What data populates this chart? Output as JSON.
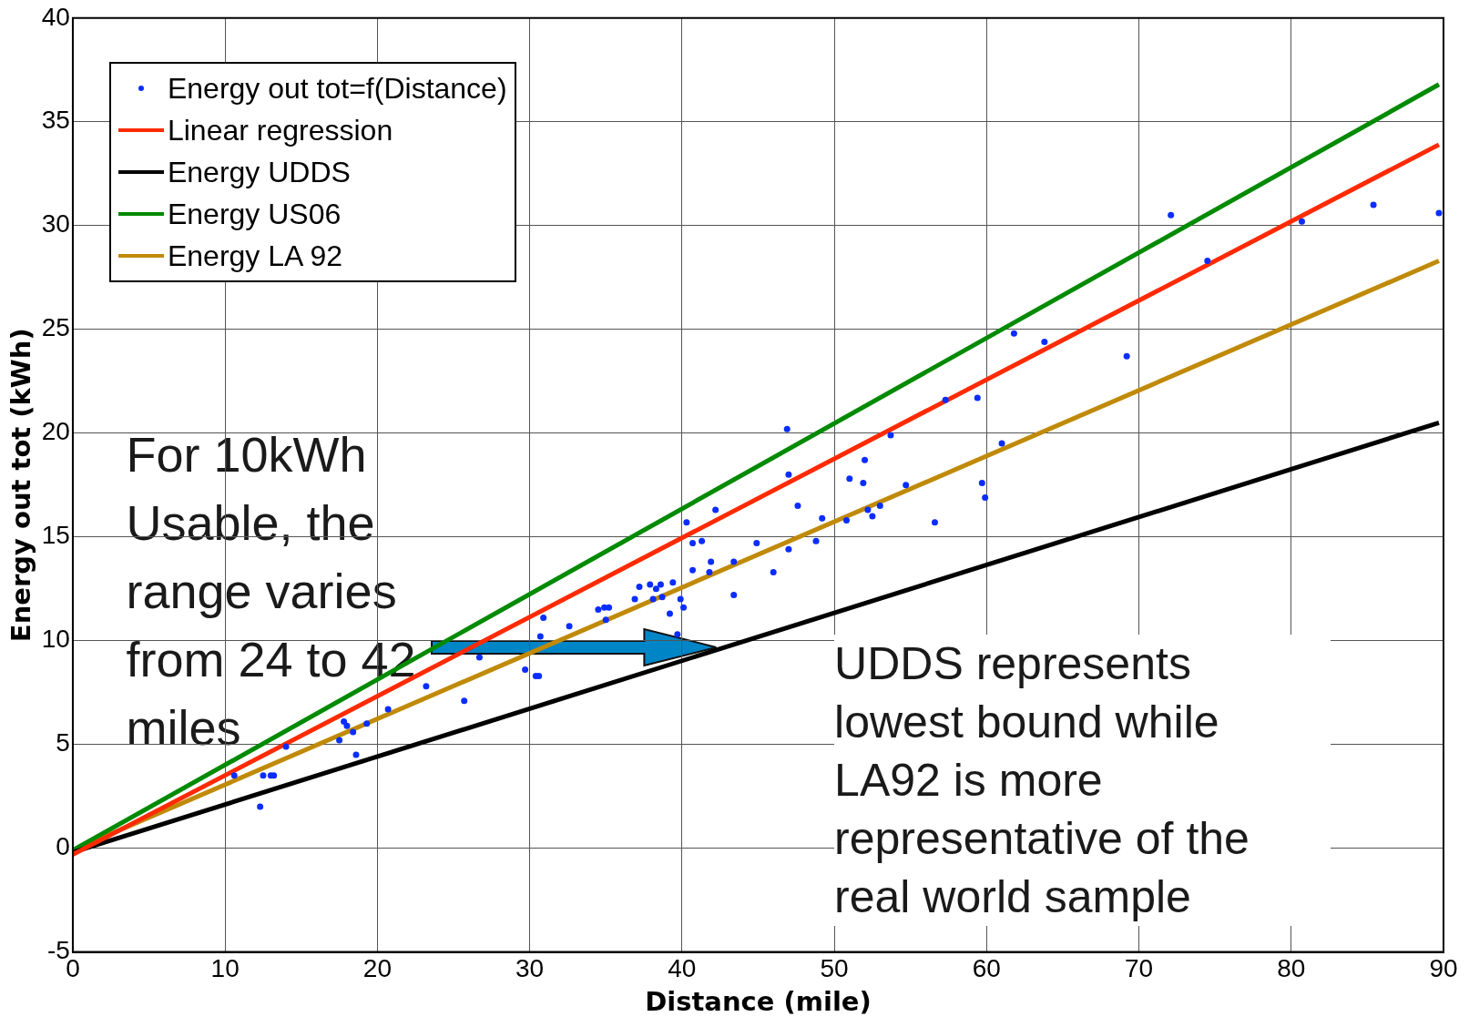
{
  "chart_data": {
    "type": "scatter",
    "xlabel": "Distance (mile)",
    "ylabel": "Energy out tot (kWh)",
    "xlim": [
      0,
      90
    ],
    "ylim": [
      -5,
      40
    ],
    "xticks": [
      0,
      10,
      20,
      30,
      40,
      50,
      60,
      70,
      80,
      90
    ],
    "yticks": [
      -5,
      0,
      5,
      10,
      15,
      20,
      25,
      30,
      35,
      40
    ],
    "grid": true,
    "legend": "top left",
    "annotations": [
      "For 10kWh Usable, the range varies from 24 to 42 miles",
      "UDDS represents lowest bound while LA92 is more representative of the real world sample"
    ],
    "series": [
      {
        "name": "Energy out tot=f(Distance)",
        "marker": "circle",
        "color": "#0a2dff",
        "x": [
          12.3,
          10.6,
          12.5,
          13.0,
          13.2,
          14.0,
          17.5,
          17.8,
          18.0,
          18.4,
          18.6,
          19.3,
          20.7,
          23.2,
          25.7,
          26.7,
          29.7,
          30.4,
          30.6,
          30.7,
          30.9,
          32.6,
          34.5,
          34.9,
          35.2,
          35.0,
          36.9,
          37.2,
          37.9,
          38.3,
          38.6,
          38.1,
          38.7,
          39.2,
          39.9,
          39.4,
          39.7,
          40.1,
          40.3,
          40.7,
          40.7,
          41.3,
          41.8,
          41.9,
          42.2,
          43.4,
          43.4,
          44.9,
          46.0,
          46.9,
          47.0,
          47.0,
          47.6,
          48.8,
          49.2,
          50.8,
          51.0,
          52.0,
          51.9,
          52.2,
          52.5,
          53.0,
          53.7,
          54.7,
          56.6,
          57.3,
          59.4,
          59.7,
          59.9,
          61.0,
          61.8,
          63.8,
          69.2,
          72.1,
          74.5,
          80.7,
          85.4,
          89.7
        ],
        "values": [
          2.0,
          3.5,
          3.5,
          3.5,
          3.5,
          4.9,
          5.2,
          6.1,
          5.9,
          5.6,
          4.5,
          6.0,
          6.7,
          7.8,
          7.1,
          9.2,
          8.6,
          8.3,
          8.3,
          10.2,
          11.1,
          10.7,
          11.5,
          11.6,
          11.6,
          11.0,
          12.0,
          12.6,
          12.7,
          12.5,
          12.7,
          12.0,
          12.1,
          11.3,
          12.0,
          12.8,
          10.3,
          11.6,
          15.7,
          13.4,
          14.7,
          14.8,
          13.3,
          13.8,
          16.3,
          12.2,
          13.8,
          14.7,
          13.3,
          20.2,
          18.0,
          14.4,
          16.5,
          14.8,
          15.9,
          15.8,
          17.8,
          18.7,
          17.6,
          16.3,
          16.0,
          16.5,
          19.9,
          17.5,
          15.7,
          21.6,
          21.7,
          17.6,
          16.9,
          19.5,
          24.8,
          24.4,
          23.7,
          30.5,
          28.3,
          30.2,
          31.0,
          30.6
        ]
      },
      {
        "name": "Linear regression",
        "type": "line",
        "color": "#ff2a00",
        "x": [
          0,
          89.7
        ],
        "values": [
          -0.3,
          33.9
        ]
      },
      {
        "name": "Energy UDDS",
        "type": "line",
        "color": "#000000",
        "x": [
          0,
          89.7
        ],
        "values": [
          -0.2,
          20.5
        ]
      },
      {
        "name": "Energy US06",
        "type": "line",
        "color": "#008a00",
        "x": [
          0,
          89.7
        ],
        "values": [
          -0.1,
          36.8
        ]
      },
      {
        "name": "Energy LA 92",
        "type": "line",
        "color": "#c08a08",
        "x": [
          0,
          89.7
        ],
        "values": [
          -0.1,
          28.3
        ]
      }
    ]
  }
}
